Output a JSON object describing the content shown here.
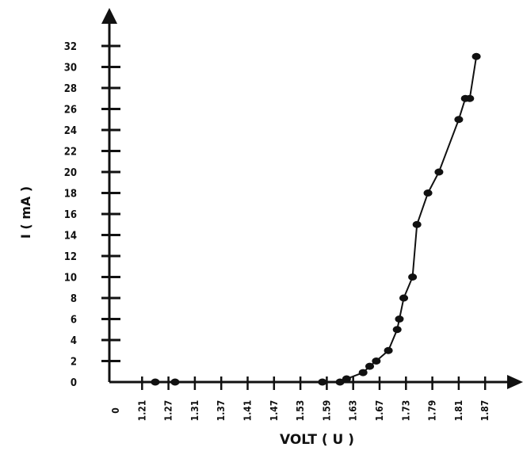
{
  "chart_data": {
    "type": "line",
    "title": "",
    "xlabel": "VOLT ( U )",
    "ylabel": "I ( mA )",
    "x_tick_labels": [
      "0",
      "1.21",
      "1.27",
      "1.31",
      "1.37",
      "1.41",
      "1.47",
      "1.53",
      "1.59",
      "1.63",
      "1.67",
      "1.73",
      "1.79",
      "1.81",
      "1.87"
    ],
    "y_tick_labels": [
      "0",
      "2",
      "4",
      "6",
      "8",
      "10",
      "12",
      "14",
      "16",
      "18",
      "20",
      "22",
      "24",
      "26",
      "28",
      "30",
      "32"
    ],
    "ylim": [
      0,
      32
    ],
    "grid": false,
    "series": [
      {
        "x": [
          1.24,
          1.28,
          1.58,
          1.61,
          1.62,
          1.645,
          1.655,
          1.665,
          1.69,
          1.71,
          1.715,
          1.725,
          1.745,
          1.755,
          1.78,
          1.795,
          1.81,
          1.825,
          1.835,
          1.85
        ],
        "values": [
          0,
          0,
          0,
          0,
          0.3,
          0.9,
          1.5,
          2.0,
          3.0,
          5.0,
          6.0,
          8.0,
          10.0,
          15.0,
          18.0,
          20.0,
          25.0,
          27.0,
          27.0,
          31.0
        ]
      }
    ]
  }
}
